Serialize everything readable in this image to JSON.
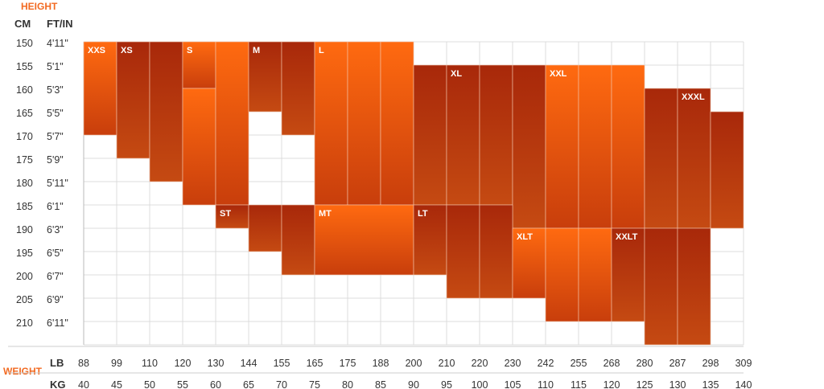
{
  "chart_data": {
    "type": "heatmap",
    "title": "",
    "colors": {
      "accent": "#f26a21",
      "zone_light_top": "#ff6a10",
      "zone_light_bottom": "#c83e0c",
      "zone_dark_top": "#a8280a",
      "zone_dark_bottom": "#c54a12",
      "grid": "#dcdcdc",
      "cell_border": "#f3c6ad"
    },
    "y_axis": {
      "label": "HEIGHT",
      "cm_header": "CM",
      "ftin_header": "FT/IN",
      "cm": [
        "150",
        "155",
        "160",
        "165",
        "170",
        "175",
        "180",
        "185",
        "190",
        "195",
        "200",
        "205",
        "210"
      ],
      "ftin": [
        "4'11\"",
        "5'1\"",
        "5'3\"",
        "5'5\"",
        "5'7\"",
        "5'9\"",
        "5'11\"",
        "6'1\"",
        "6'3\"",
        "6'5\"",
        "6'7\"",
        "6'9\"",
        "6'11\""
      ]
    },
    "x_axis": {
      "label": "WEIGHT",
      "lb_header": "LB",
      "kg_header": "KG",
      "lb": [
        "88",
        "99",
        "110",
        "120",
        "130",
        "144",
        "155",
        "165",
        "175",
        "188",
        "200",
        "210",
        "220",
        "230",
        "242",
        "255",
        "268",
        "280",
        "287",
        "298",
        "309"
      ],
      "kg": [
        "40",
        "45",
        "50",
        "55",
        "60",
        "65",
        "70",
        "75",
        "80",
        "85",
        "90",
        "95",
        "100",
        "105",
        "110",
        "115",
        "120",
        "125",
        "130",
        "135",
        "140"
      ]
    },
    "sizes": [
      {
        "name": "XXS",
        "shade": "light",
        "weight_kg": [
          40,
          45
        ],
        "height_cm": [
          150,
          170
        ],
        "label_at": [
          40,
          150
        ]
      },
      {
        "name": "XS",
        "shade": "dark",
        "weight_kg": [
          45,
          55
        ],
        "height_cm": [
          150,
          180
        ],
        "cells": [
          [
            45,
            50,
            150,
            175
          ],
          [
            50,
            55,
            150,
            180
          ]
        ],
        "label_at": [
          45,
          150
        ]
      },
      {
        "name": "S",
        "shade": "light",
        "weight_kg": [
          55,
          65
        ],
        "height_cm": [
          150,
          190
        ],
        "cells": [
          [
            55,
            60,
            150,
            160
          ],
          [
            55,
            60,
            160,
            185
          ],
          [
            60,
            65,
            150,
            185
          ]
        ],
        "label_at": [
          55,
          150
        ]
      },
      {
        "name": "M",
        "shade": "dark",
        "weight_kg": [
          65,
          75
        ],
        "height_cm": [
          150,
          170
        ],
        "cells": [
          [
            65,
            70,
            150,
            165
          ],
          [
            70,
            75,
            150,
            170
          ]
        ],
        "label_at": [
          65,
          150
        ]
      },
      {
        "name": "L",
        "shade": "light",
        "weight_kg": [
          75,
          90
        ],
        "height_cm": [
          150,
          185
        ],
        "cells": [
          [
            75,
            80,
            150,
            185
          ],
          [
            80,
            85,
            150,
            185
          ],
          [
            85,
            90,
            150,
            185
          ]
        ],
        "label_at": [
          75,
          150
        ]
      },
      {
        "name": "XL",
        "shade": "dark",
        "weight_kg": [
          90,
          110
        ],
        "height_cm": [
          155,
          190
        ],
        "cells": [
          [
            90,
            95,
            155,
            185
          ],
          [
            95,
            100,
            155,
            185
          ],
          [
            100,
            105,
            155,
            185
          ],
          [
            105,
            110,
            155,
            190
          ]
        ],
        "label_at": [
          95,
          155
        ]
      },
      {
        "name": "XXL",
        "shade": "light",
        "weight_kg": [
          110,
          125
        ],
        "height_cm": [
          155,
          190
        ],
        "cells": [
          [
            110,
            115,
            155,
            190
          ],
          [
            115,
            120,
            155,
            190
          ],
          [
            120,
            125,
            155,
            190
          ]
        ],
        "label_at": [
          110,
          155
        ]
      },
      {
        "name": "XXXL",
        "shade": "dark",
        "weight_kg": [
          125,
          140
        ],
        "height_cm": [
          160,
          190
        ],
        "cells": [
          [
            125,
            130,
            160,
            190
          ],
          [
            130,
            135,
            160,
            190
          ],
          [
            135,
            140,
            165,
            190
          ]
        ],
        "label_at": [
          130,
          160
        ]
      },
      {
        "name": "ST",
        "shade": "dark",
        "weight_kg": [
          60,
          75
        ],
        "height_cm": [
          185,
          200
        ],
        "cells": [
          [
            60,
            65,
            185,
            190
          ],
          [
            65,
            70,
            185,
            195
          ],
          [
            70,
            75,
            185,
            200
          ]
        ],
        "label_at": [
          60,
          185
        ]
      },
      {
        "name": "MT",
        "shade": "light",
        "weight_kg": [
          75,
          90
        ],
        "height_cm": [
          185,
          200
        ],
        "label_at": [
          75,
          185
        ]
      },
      {
        "name": "LT",
        "shade": "dark",
        "weight_kg": [
          90,
          105
        ],
        "height_cm": [
          185,
          205
        ],
        "cells": [
          [
            90,
            95,
            185,
            200
          ],
          [
            95,
            100,
            185,
            205
          ],
          [
            100,
            105,
            185,
            205
          ]
        ],
        "label_at": [
          90,
          185
        ]
      },
      {
        "name": "XLT",
        "shade": "light",
        "weight_kg": [
          105,
          120
        ],
        "height_cm": [
          190,
          210
        ],
        "cells": [
          [
            105,
            110,
            190,
            205
          ],
          [
            110,
            115,
            190,
            210
          ],
          [
            115,
            120,
            190,
            210
          ]
        ],
        "label_at": [
          105,
          190
        ]
      },
      {
        "name": "XXLT",
        "shade": "dark",
        "weight_kg": [
          120,
          135
        ],
        "height_cm": [
          190,
          215
        ],
        "cells": [
          [
            120,
            125,
            190,
            210
          ],
          [
            125,
            130,
            190,
            215
          ],
          [
            130,
            135,
            190,
            215
          ]
        ],
        "label_at": [
          120,
          190
        ]
      }
    ]
  }
}
